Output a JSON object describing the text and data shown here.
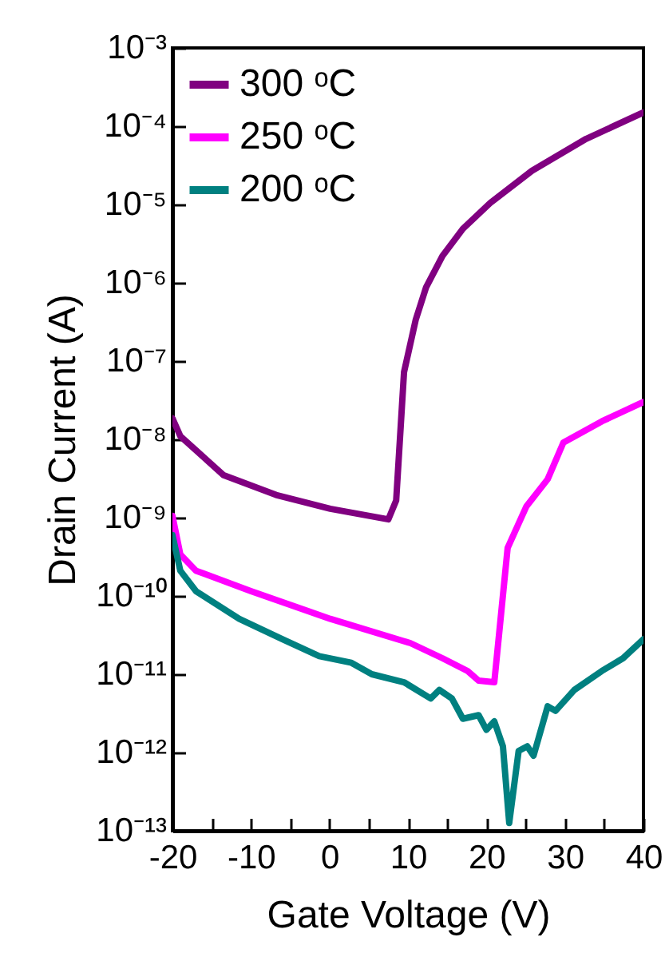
{
  "chart_data": {
    "type": "line",
    "xlabel": "Gate Voltage (V)",
    "ylabel": "Drain Current (A)",
    "log": "y",
    "legend": "top left",
    "line_style": "solid",
    "xlim": [
      -20,
      40
    ],
    "xticks": [
      -20,
      {
        "value": -15,
        "label": null
      },
      -10,
      {
        "value": -5,
        "label": null
      },
      0,
      {
        "value": 5,
        "label": null
      },
      10,
      {
        "value": 15,
        "label": null
      },
      20,
      {
        "value": 25,
        "label": null
      },
      30,
      {
        "value": 35,
        "label": null
      },
      40
    ],
    "ylim": [
      1e-13,
      0.001
    ],
    "yticks": [
      {
        "value": 1e-13,
        "label": "10⁻¹³"
      },
      {
        "value": 1e-12,
        "label": "10⁻¹²"
      },
      {
        "value": 1e-11,
        "label": "10⁻¹¹"
      },
      {
        "value": 1e-10,
        "label": "10⁻¹⁰"
      },
      {
        "value": 1e-09,
        "label": "10⁻⁹"
      },
      {
        "value": 1e-08,
        "label": "10⁻⁸"
      },
      {
        "value": 1e-07,
        "label": "10⁻⁷"
      },
      {
        "value": 1e-06,
        "label": "10⁻⁶"
      },
      {
        "value": 1e-05,
        "label": "10⁻⁵"
      },
      {
        "value": 0.0001,
        "label": "10⁻⁴"
      },
      {
        "value": 0.001,
        "label": "10⁻³"
      }
    ],
    "series": [
      {
        "name": "300 ᵒC",
        "color": "#800080",
        "x": [
          -20,
          -19,
          -13.5,
          -6.8,
          0.1,
          7.5,
          8.5,
          9.5,
          11,
          12.3,
          14.4,
          17,
          20.5,
          25.8,
          32.7,
          40
        ],
        "values": [
          1.86e-08,
          1.1e-08,
          3.5e-09,
          1.95e-09,
          1.3e-09,
          9.5e-10,
          1.66e-09,
          7.2e-08,
          3.4e-07,
          8.7e-07,
          2.2e-06,
          4.9e-06,
          1.05e-05,
          2.7e-05,
          6.9e-05,
          0.00015
        ]
      },
      {
        "name": "250 ᵒC",
        "color": "#ff00ff",
        "x": [
          -20,
          -19,
          -17,
          -10,
          0.1,
          10.3,
          14.4,
          17.6,
          19,
          21,
          22.7,
          25.1,
          27.8,
          29.8,
          34.7,
          40
        ],
        "values": [
          1.05e-09,
          3.4e-10,
          2.1e-10,
          1.15e-10,
          5.1e-11,
          2.5e-11,
          1.6e-11,
          1.1e-11,
          8.3e-12,
          7.9e-12,
          4.1e-10,
          1.4e-09,
          3.1e-09,
          9.1e-09,
          1.7e-08,
          3e-08
        ]
      },
      {
        "name": "200 ᵒC",
        "color": "#008080",
        "x": [
          -20,
          -19,
          -17,
          -11.5,
          -6,
          -1.3,
          2.8,
          5.4,
          9.5,
          12.9,
          14,
          15.6,
          17,
          19,
          20,
          21,
          22.1,
          22.9,
          24.1,
          25.2,
          26,
          27.8,
          28.8,
          31.2,
          34.7,
          37.4,
          40
        ],
        "values": [
          6e-10,
          2.1e-10,
          1.15e-10,
          5.1e-11,
          2.8e-11,
          1.7e-11,
          1.4e-11,
          1e-11,
          7.9e-12,
          4.9e-12,
          6.3e-12,
          4.9e-12,
          2.7e-12,
          3e-12,
          1.95e-12,
          2.5e-12,
          1.2e-12,
          1.26e-13,
          1.05e-12,
          1.2e-12,
          9.1e-13,
          3.9e-12,
          3.4e-12,
          6.3e-12,
          1.1e-11,
          1.6e-11,
          2.8e-11
        ]
      }
    ]
  }
}
